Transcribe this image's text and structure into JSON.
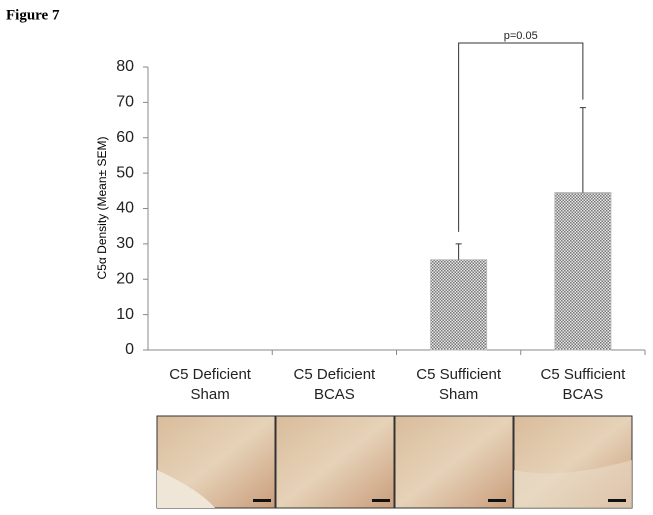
{
  "figure_label": "Figure 7",
  "chart_data": {
    "type": "bar",
    "y_label": "C5α Density (Mean± SEM)",
    "categories": [
      "C5 Deficient Sham",
      "C5 Deficient BCAS",
      "C5 Sufficient Sham",
      "C5 Sufficient BCAS"
    ],
    "values": [
      0,
      0,
      25.5,
      44.5
    ],
    "errors": [
      0,
      0,
      4.5,
      24
    ],
    "color": "#b8b8b8",
    "ylim": [
      0,
      80
    ],
    "yticks": [
      0,
      10,
      20,
      30,
      40,
      50,
      60,
      70,
      80
    ],
    "annotation": "p=0.05"
  }
}
